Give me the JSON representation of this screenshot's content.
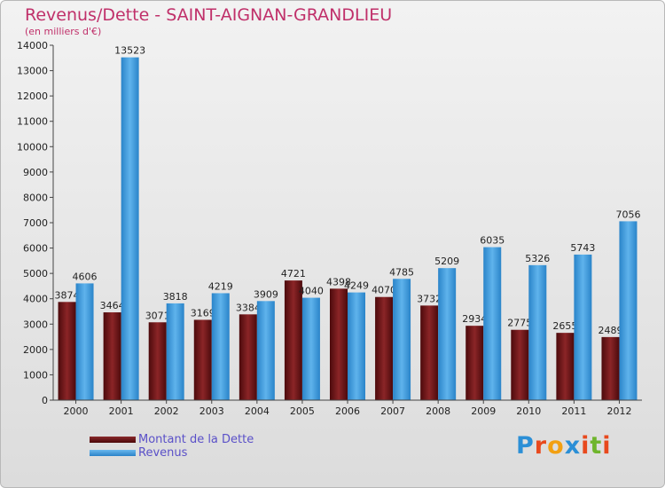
{
  "chart_data": {
    "type": "bar",
    "title": "Revenus/Dette - SAINT-AIGNAN-GRANDLIEU",
    "subtitle": "(en milliers d'€)",
    "categories": [
      "2000",
      "2001",
      "2002",
      "2003",
      "2004",
      "2005",
      "2006",
      "2007",
      "2008",
      "2009",
      "2010",
      "2011",
      "2012"
    ],
    "series": [
      {
        "name": "Montant de la Dette",
        "color": "#6b0e10",
        "values": [
          3874,
          3464,
          3071,
          3169,
          3384,
          4721,
          4398,
          4070,
          3732,
          2934,
          2775,
          2655,
          2489
        ]
      },
      {
        "name": "Revenus",
        "color": "#3a98dc",
        "values": [
          4606,
          13523,
          3818,
          4219,
          3909,
          4040,
          4249,
          4785,
          5209,
          6035,
          5326,
          5743,
          7056
        ]
      }
    ],
    "ylim": [
      0,
      14000
    ],
    "yticks": [
      0,
      1000,
      2000,
      3000,
      4000,
      5000,
      6000,
      7000,
      8000,
      9000,
      10000,
      11000,
      12000,
      13000,
      14000
    ],
    "grid": false,
    "legend_position": "bottom-left"
  },
  "logo_text": "Proxiti"
}
